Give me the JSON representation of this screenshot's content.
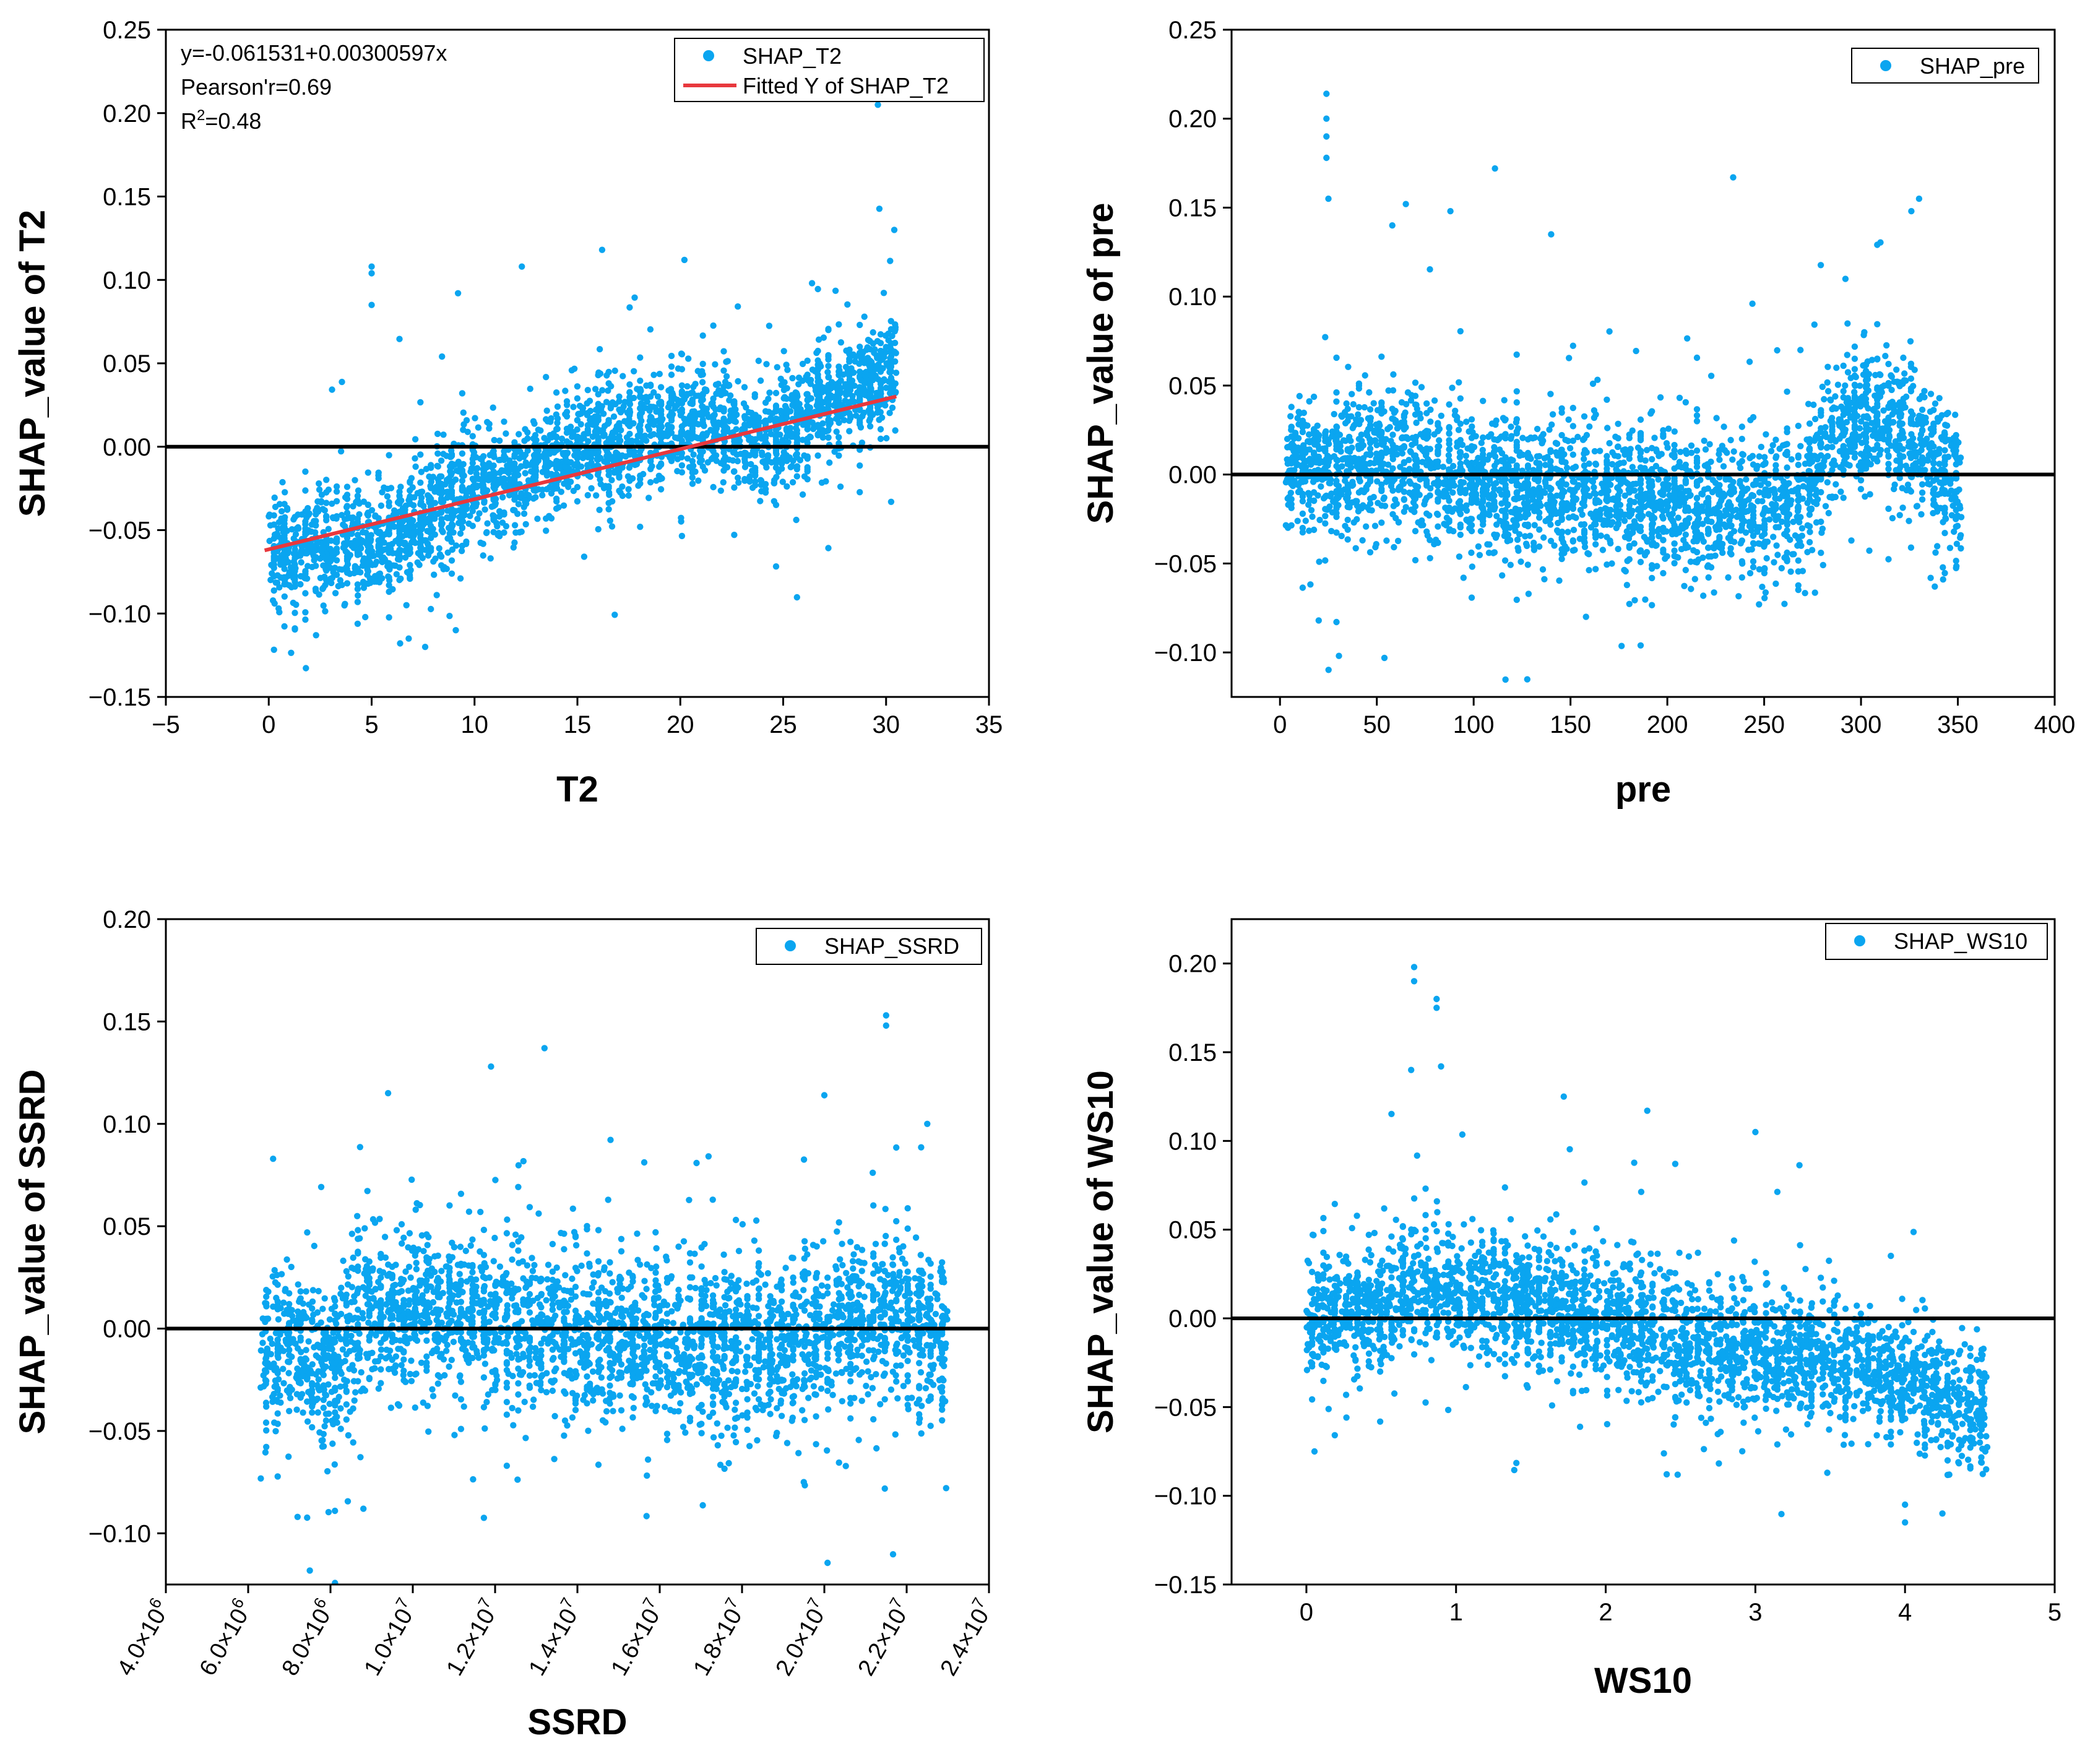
{
  "chart_data": [
    {
      "type": "scatter",
      "id": "t2",
      "xlabel": "T2",
      "ylabel": "SHAP_value of T2",
      "xlim": [
        -5,
        35
      ],
      "ylim": [
        -0.15,
        0.25
      ],
      "xticks": [
        -5,
        0,
        5,
        10,
        15,
        20,
        25,
        30,
        35
      ],
      "xtick_labels": [
        "−5",
        "0",
        "5",
        "10",
        "15",
        "20",
        "25",
        "30",
        "35"
      ],
      "yticks": [
        -0.15,
        -0.1,
        -0.05,
        0.0,
        0.05,
        0.1,
        0.15,
        0.2,
        0.25
      ],
      "ytick_labels": [
        "−0.15",
        "−0.10",
        "−0.05",
        "0.00",
        "0.05",
        "0.10",
        "0.15",
        "0.20",
        "0.25"
      ],
      "legend_position": "top-right",
      "series": [
        {
          "name": "SHAP_T2",
          "kind": "scatter",
          "color": "#0aa5f0",
          "x_range": [
            0,
            30.5
          ],
          "profile": [
            [
              0,
              -0.065
            ],
            [
              2,
              -0.055
            ],
            [
              4,
              -0.06
            ],
            [
              6,
              -0.055
            ],
            [
              8,
              -0.04
            ],
            [
              10,
              -0.025
            ],
            [
              12,
              -0.02
            ],
            [
              14,
              -0.005
            ],
            [
              16,
              0.0
            ],
            [
              18,
              0.01
            ],
            [
              20,
              0.01
            ],
            [
              22,
              0.015
            ],
            [
              24,
              0.0
            ],
            [
              26,
              0.02
            ],
            [
              28,
              0.03
            ],
            [
              30,
              0.045
            ]
          ],
          "spread": 0.03,
          "count": 3000,
          "outliers": [
            [
              5,
              0.108
            ],
            [
              5,
              0.104
            ],
            [
              5,
              0.085
            ],
            [
              9.2,
              0.092
            ],
            [
              16.2,
              0.118
            ],
            [
              29.6,
              0.205
            ],
            [
              12.3,
              0.108
            ],
            [
              20.2,
              0.112
            ],
            [
              30.4,
              0.13
            ],
            [
              7.6,
              -0.12
            ],
            [
              6.8,
              -0.115
            ],
            [
              2.3,
              -0.113
            ]
          ]
        },
        {
          "name": "Fitted Y of SHAP_T2",
          "kind": "line",
          "color": "#e8383d",
          "intercept": -0.061531,
          "slope": 0.00300597,
          "x_range": [
            -0.2,
            30.5
          ]
        }
      ],
      "reference_line": {
        "y": 0.0,
        "color": "#000000"
      },
      "annotations": {
        "equation": "y=-0.061531+0.00300597x",
        "pearson": "Pearson'r=0.69",
        "r2_prefix": "R",
        "r2_sup": "2",
        "r2_suffix": "=0.48"
      }
    },
    {
      "type": "scatter",
      "id": "pre",
      "xlabel": "pre",
      "ylabel": "SHAP_value of pre",
      "xlim": [
        -25,
        400
      ],
      "ylim": [
        -0.125,
        0.25
      ],
      "xticks": [
        0,
        50,
        100,
        150,
        200,
        250,
        300,
        350,
        400
      ],
      "xtick_labels": [
        "0",
        "50",
        "100",
        "150",
        "200",
        "250",
        "300",
        "350",
        "400"
      ],
      "yticks": [
        -0.1,
        -0.05,
        0.0,
        0.05,
        0.1,
        0.15,
        0.2,
        0.25
      ],
      "ytick_labels": [
        "−0.10",
        "−0.05",
        "0.00",
        "0.05",
        "0.10",
        "0.15",
        "0.20",
        "0.25"
      ],
      "legend_position": "top-right",
      "series": [
        {
          "name": "SHAP_pre",
          "kind": "scatter",
          "color": "#0aa5f0",
          "x_range": [
            3,
            352
          ],
          "profile": [
            [
              3,
              0.0
            ],
            [
              30,
              0.005
            ],
            [
              60,
              0.012
            ],
            [
              100,
              -0.005
            ],
            [
              150,
              -0.01
            ],
            [
              200,
              -0.015
            ],
            [
              250,
              -0.02
            ],
            [
              270,
              -0.015
            ],
            [
              290,
              0.03
            ],
            [
              310,
              0.035
            ],
            [
              330,
              0.02
            ],
            [
              350,
              -0.01
            ]
          ],
          "spread": 0.035,
          "count": 3200,
          "outliers": [
            [
              24,
              0.214
            ],
            [
              24,
              0.2
            ],
            [
              24,
              0.19
            ],
            [
              24,
              0.178
            ],
            [
              25,
              0.155
            ],
            [
              111,
              0.172
            ],
            [
              234,
              0.167
            ],
            [
              65,
              0.152
            ],
            [
              88,
              0.148
            ],
            [
              140,
              0.135
            ],
            [
              20,
              -0.082
            ],
            [
              158,
              -0.08
            ],
            [
              58,
              0.14
            ],
            [
              330,
              0.155
            ],
            [
              326,
              0.148
            ]
          ]
        }
      ],
      "reference_line": {
        "y": 0.0,
        "color": "#000000"
      }
    },
    {
      "type": "scatter",
      "id": "ssrd",
      "xlabel": "SSRD",
      "ylabel": "SHAP_value of SSRD",
      "xlim": [
        4000000,
        24000000
      ],
      "ylim": [
        -0.125,
        0.2
      ],
      "xticks": [
        4000000,
        6000000,
        8000000,
        10000000,
        12000000,
        14000000,
        16000000,
        18000000,
        20000000,
        22000000,
        24000000
      ],
      "xtick_labels": [
        {
          "m": "4.0×10",
          "e": "6"
        },
        {
          "m": "6.0×10",
          "e": "6"
        },
        {
          "m": "8.0×10",
          "e": "6"
        },
        {
          "m": "1.0×10",
          "e": "7"
        },
        {
          "m": "1.2×10",
          "e": "7"
        },
        {
          "m": "1.4×10",
          "e": "7"
        },
        {
          "m": "1.6×10",
          "e": "7"
        },
        {
          "m": "1.8×10",
          "e": "7"
        },
        {
          "m": "2.0×10",
          "e": "7"
        },
        {
          "m": "2.2×10",
          "e": "7"
        },
        {
          "m": "2.4×10",
          "e": "7"
        }
      ],
      "yticks": [
        -0.1,
        -0.05,
        0.0,
        0.05,
        0.1,
        0.15,
        0.2
      ],
      "ytick_labels": [
        "−0.10",
        "−0.05",
        "0.00",
        "0.05",
        "0.10",
        "0.15",
        "0.20"
      ],
      "legend_position": "top-right",
      "series": [
        {
          "name": "SHAP_SSRD",
          "kind": "scatter",
          "color": "#0aa5f0",
          "x_range": [
            6300000,
            23000000
          ],
          "profile": [
            [
              6300000,
              -0.015
            ],
            [
              7000000,
              -0.01
            ],
            [
              8000000,
              -0.02
            ],
            [
              9000000,
              0.01
            ],
            [
              10000000,
              0.01
            ],
            [
              12000000,
              0.005
            ],
            [
              14000000,
              -0.005
            ],
            [
              16000000,
              -0.005
            ],
            [
              18000000,
              -0.01
            ],
            [
              20000000,
              -0.005
            ],
            [
              21500000,
              0.01
            ],
            [
              22500000,
              0.0
            ],
            [
              23000000,
              -0.01
            ]
          ],
          "spread": 0.035,
          "count": 3200,
          "outliers": [
            [
              21500000,
              0.153
            ],
            [
              21500000,
              0.148
            ],
            [
              13200000,
              0.137
            ],
            [
              11900000,
              0.128
            ],
            [
              9400000,
              0.115
            ],
            [
              20000000,
              0.114
            ],
            [
              7200000,
              -0.092
            ],
            [
              8800000,
              -0.088
            ],
            [
              19500000,
              -0.075
            ],
            [
              22500000,
              0.1
            ]
          ]
        }
      ],
      "reference_line": {
        "y": 0.0,
        "color": "#000000"
      }
    },
    {
      "type": "scatter",
      "id": "ws10",
      "xlabel": "WS10",
      "ylabel": "SHAP_value of WS10",
      "xlim": [
        -0.5,
        5
      ],
      "ylim": [
        -0.15,
        0.225
      ],
      "xticks": [
        0,
        1,
        2,
        3,
        4,
        5
      ],
      "xtick_labels": [
        "0",
        "1",
        "2",
        "3",
        "4",
        "5"
      ],
      "yticks": [
        -0.15,
        -0.1,
        -0.05,
        0.0,
        0.05,
        0.1,
        0.15,
        0.2
      ],
      "ytick_labels": [
        "−0.15",
        "−0.10",
        "−0.05",
        "0.00",
        "0.05",
        "0.10",
        "0.15",
        "0.20"
      ],
      "legend_position": "top-right",
      "series": [
        {
          "name": "SHAP_WS10",
          "kind": "scatter",
          "color": "#0aa5f0",
          "x_range": [
            0,
            4.55
          ],
          "profile": [
            [
              0,
              0.0
            ],
            [
              0.5,
              0.01
            ],
            [
              0.8,
              0.015
            ],
            [
              1.2,
              0.01
            ],
            [
              1.7,
              0.005
            ],
            [
              2.2,
              -0.005
            ],
            [
              2.7,
              -0.015
            ],
            [
              3.2,
              -0.02
            ],
            [
              3.7,
              -0.025
            ],
            [
              4.2,
              -0.04
            ],
            [
              4.5,
              -0.05
            ]
          ],
          "spread": 0.032,
          "count": 3000,
          "outliers": [
            [
              0.72,
              0.198
            ],
            [
              0.72,
              0.19
            ],
            [
              0.87,
              0.18
            ],
            [
              0.87,
              0.175
            ],
            [
              0.9,
              0.142
            ],
            [
              1.72,
              0.125
            ],
            [
              4.0,
              -0.115
            ],
            [
              4.0,
              -0.105
            ],
            [
              4.25,
              -0.11
            ],
            [
              4.5,
              -0.07
            ],
            [
              0.7,
              0.14
            ],
            [
              3.0,
              0.105
            ]
          ]
        }
      ],
      "reference_line": {
        "y": 0.0,
        "color": "#000000"
      }
    }
  ]
}
